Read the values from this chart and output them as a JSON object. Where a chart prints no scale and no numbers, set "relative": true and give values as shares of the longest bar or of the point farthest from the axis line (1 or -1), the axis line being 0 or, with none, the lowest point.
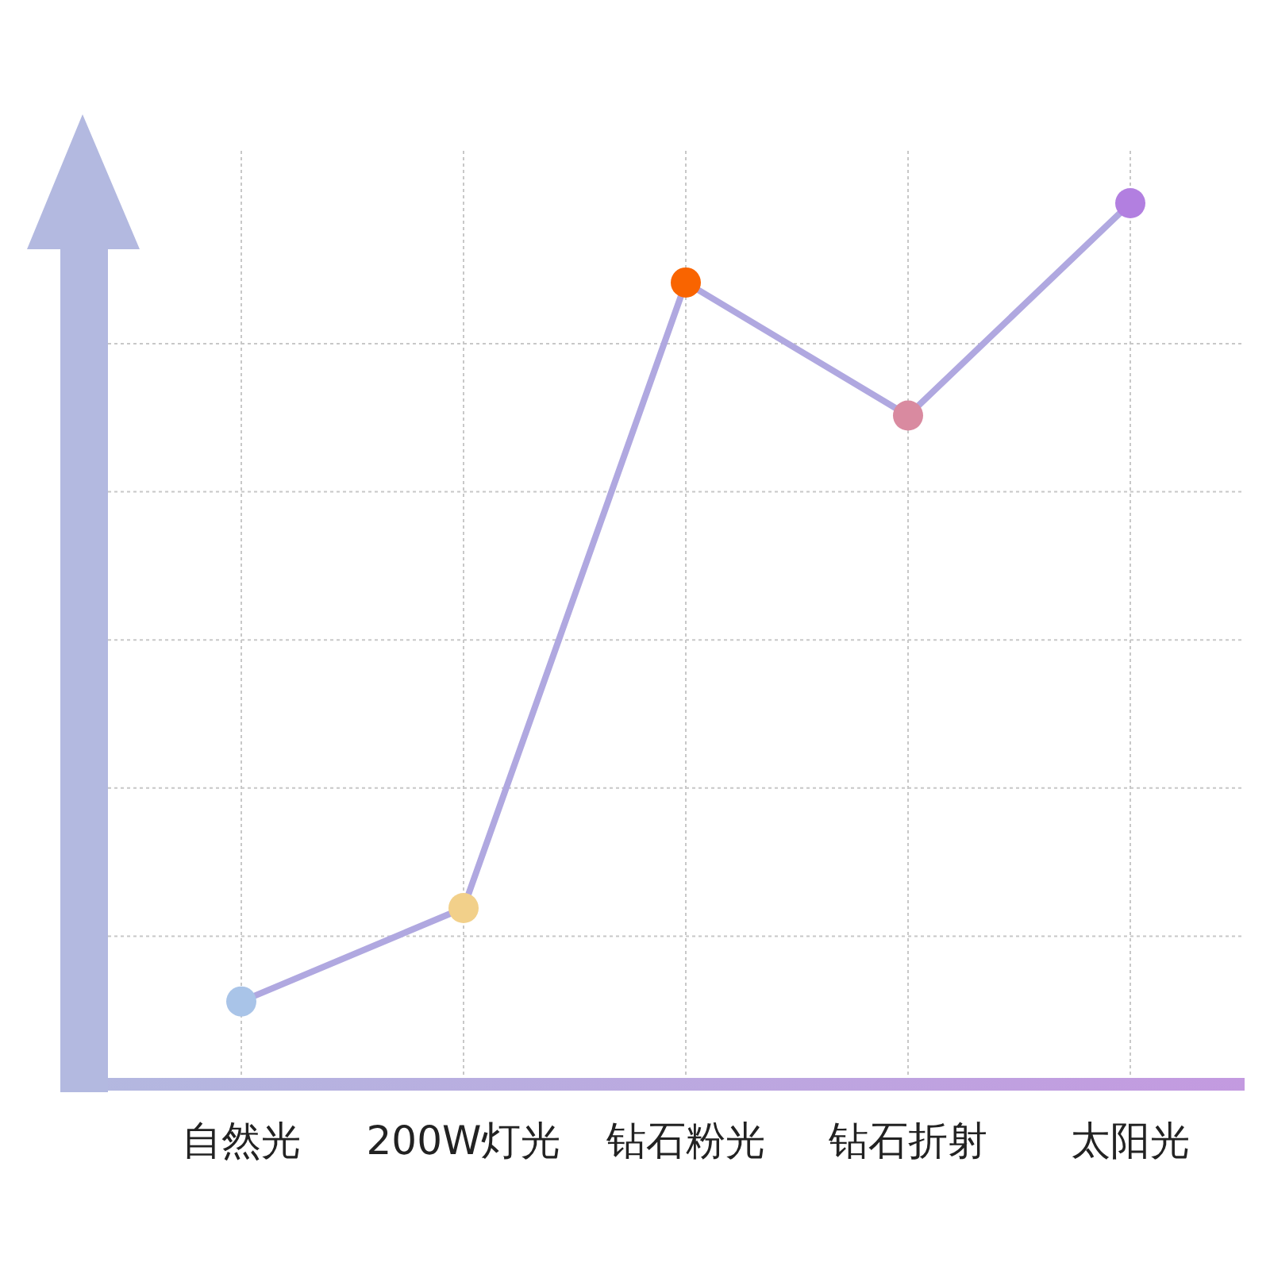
{
  "chart_data": {
    "type": "line",
    "relative": true,
    "categories": [
      "自然光",
      "200W灯光",
      "钻石粉光",
      "钻石折射",
      "太阳光"
    ],
    "series": [
      {
        "color": "#b0a8e0",
        "values": [
          0.094,
          0.2,
          0.91,
          0.759,
          1
        ],
        "colors": [
          "#a9c4e8",
          "#f2d08a",
          "#f96400",
          "#d98aa0",
          "#b27fe0"
        ]
      }
    ],
    "grid": true,
    "marker": "circle",
    "line_style": "solid"
  }
}
